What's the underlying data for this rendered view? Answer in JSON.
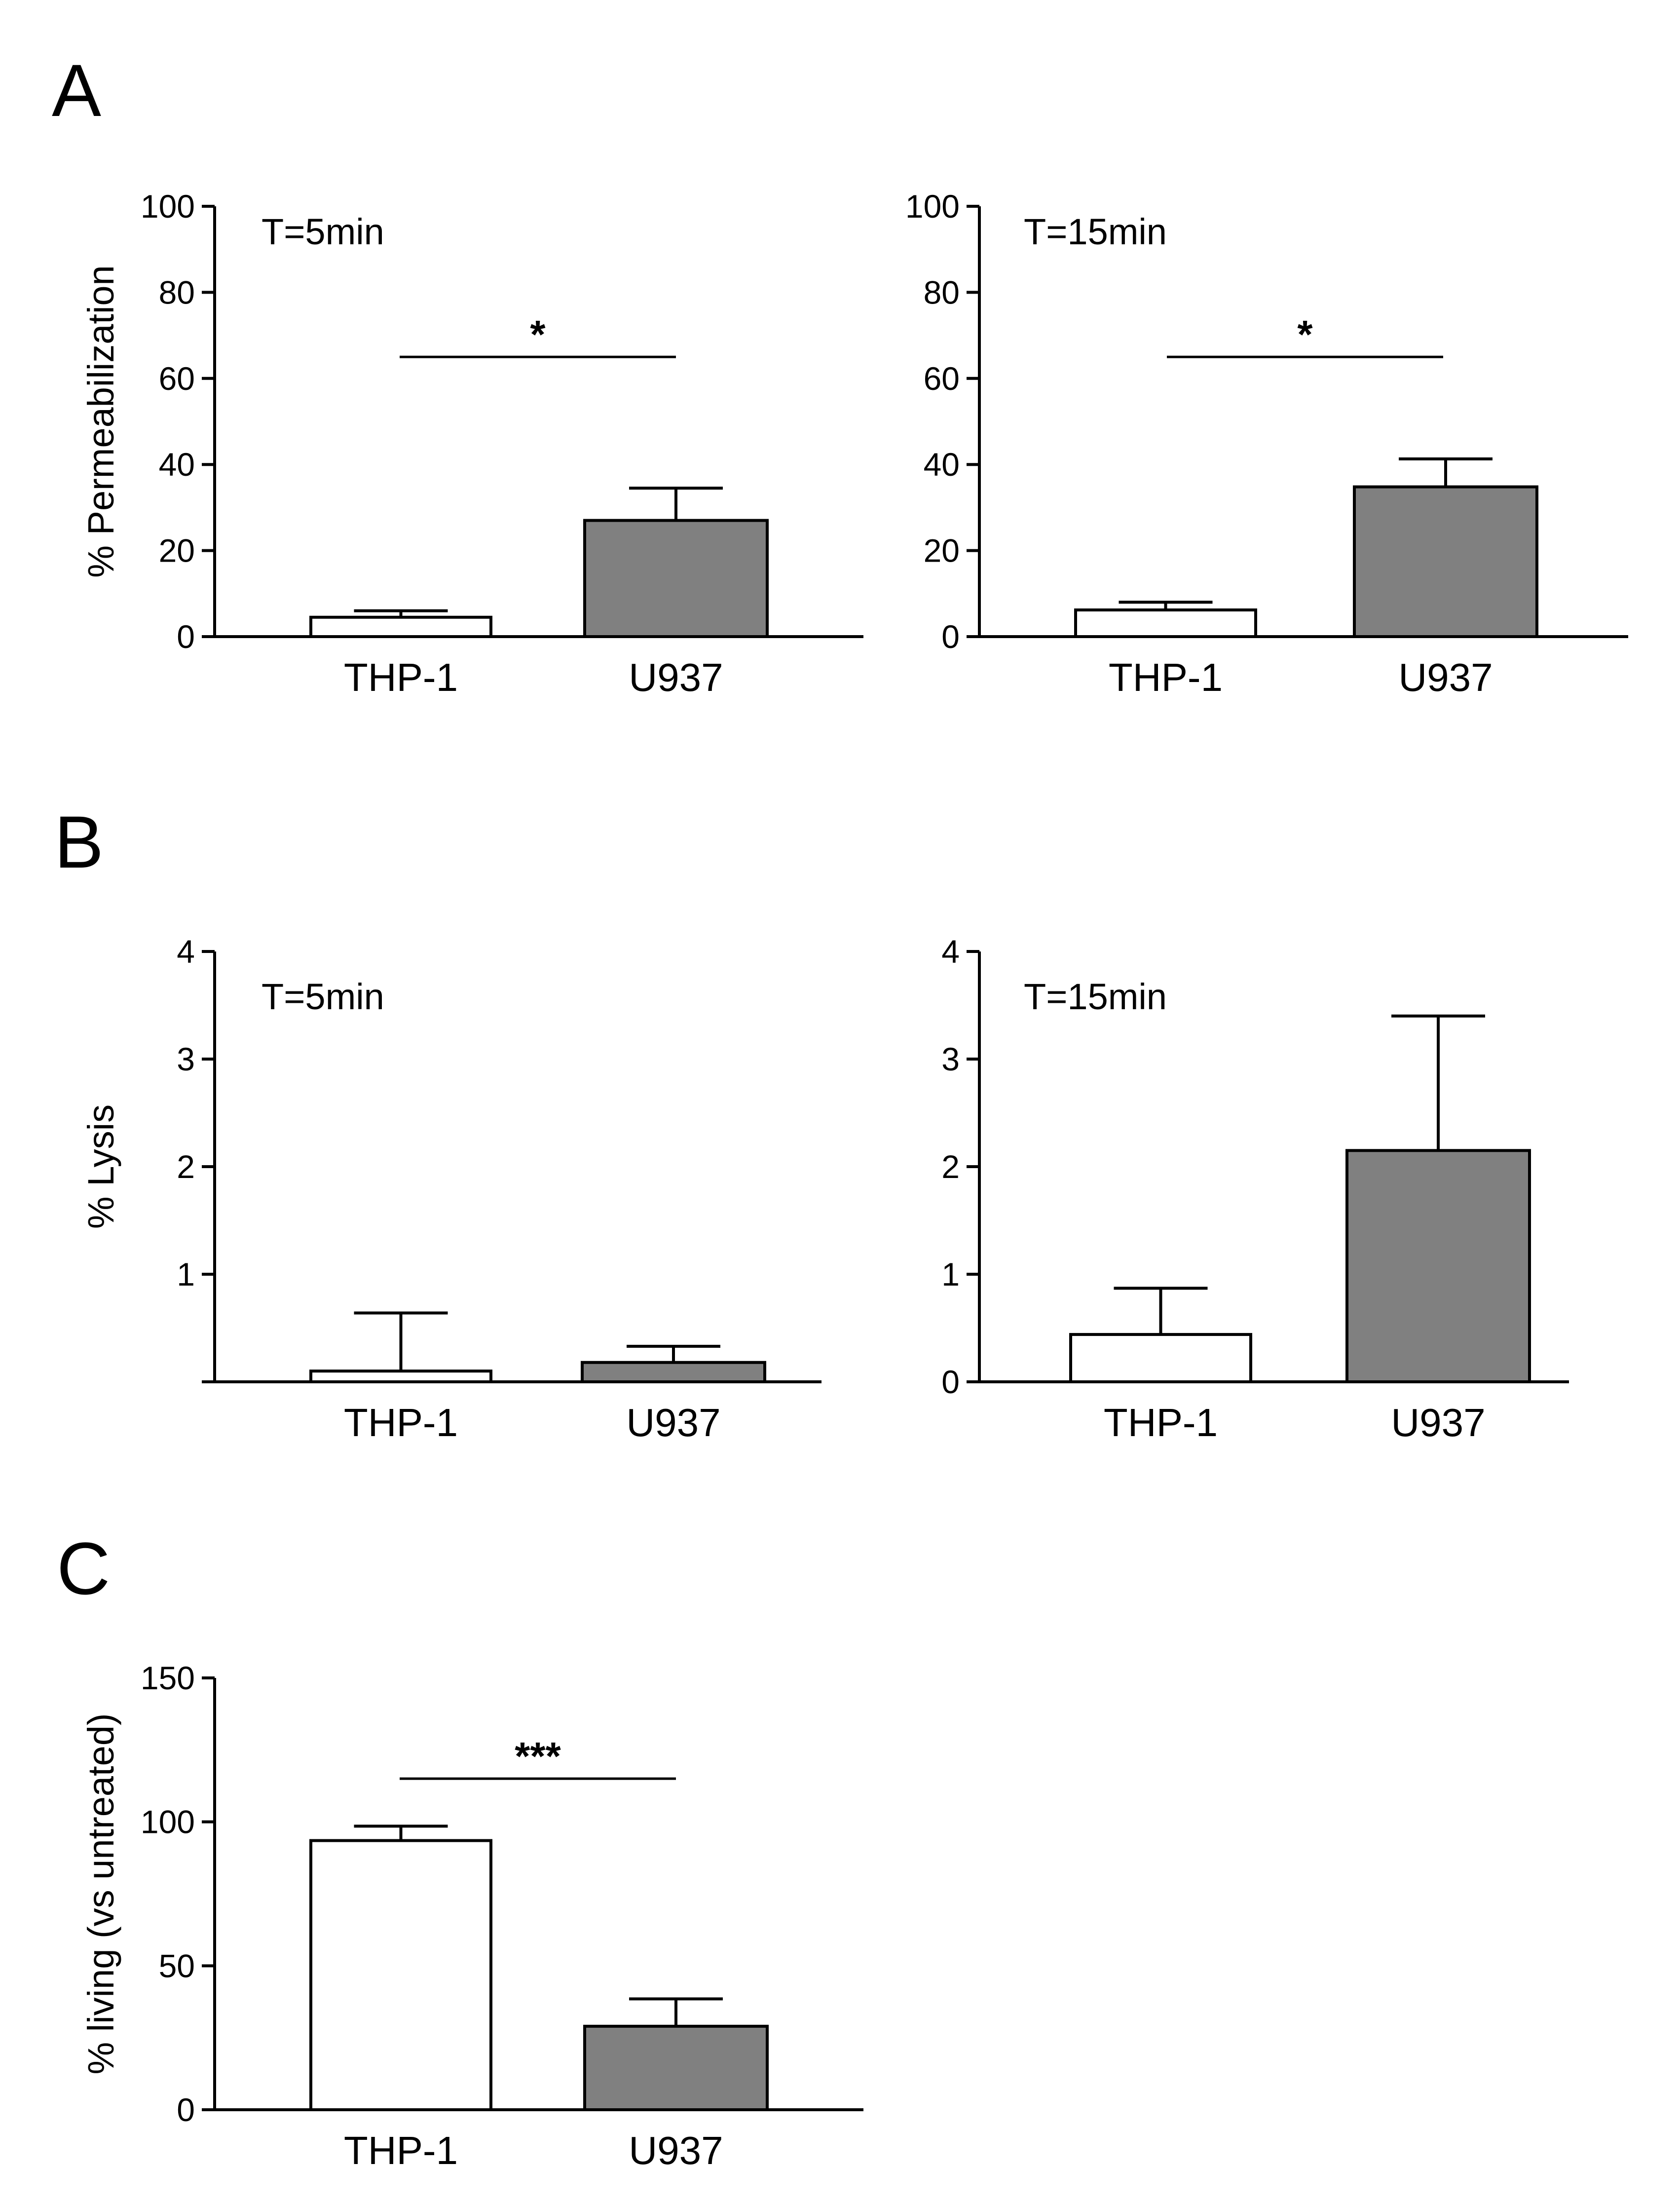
{
  "panel_letters": [
    "A",
    "B",
    "C"
  ],
  "colors": {
    "bar_thp1": "#ffffff",
    "bar_u937": "#808080",
    "stroke": "#000000"
  },
  "chart_data": [
    {
      "id": "A-5min",
      "panel": "A",
      "type": "bar",
      "annotation": "T=5min",
      "ylabel": "% Permeabilization",
      "ylim": [
        0,
        100
      ],
      "yticks": [
        0,
        20,
        40,
        60,
        80,
        100
      ],
      "categories": [
        "THP-1",
        "U937"
      ],
      "values": [
        4.5,
        27
      ],
      "errors": [
        1.5,
        7.5
      ],
      "significance": {
        "label": "*",
        "y": 65
      }
    },
    {
      "id": "A-15min",
      "panel": "A",
      "type": "bar",
      "annotation": "T=15min",
      "ylabel": "",
      "ylim": [
        0,
        100
      ],
      "yticks": [
        0,
        20,
        40,
        60,
        80,
        100
      ],
      "categories": [
        "THP-1",
        "U937"
      ],
      "values": [
        6.2,
        34.8
      ],
      "errors": [
        1.8,
        6.5
      ],
      "significance": {
        "label": "*",
        "y": 65
      }
    },
    {
      "id": "B-5min",
      "panel": "B",
      "type": "bar",
      "annotation": "T=5min",
      "ylabel": "% Lysis",
      "ylim": [
        0,
        4
      ],
      "yticks": [
        1,
        2,
        3,
        4
      ],
      "categories": [
        "THP-1",
        "U937"
      ],
      "values": [
        0.1,
        0.18
      ],
      "errors": [
        0.54,
        0.15
      ],
      "significance": null
    },
    {
      "id": "B-15min",
      "panel": "B",
      "type": "bar",
      "annotation": "T=15min",
      "ylabel": "",
      "ylim": [
        0,
        4
      ],
      "yticks": [
        0,
        1,
        2,
        3,
        4
      ],
      "categories": [
        "THP-1",
        "U937"
      ],
      "values": [
        0.44,
        2.15
      ],
      "errors": [
        0.43,
        1.25
      ],
      "significance": null
    },
    {
      "id": "C",
      "panel": "C",
      "type": "bar",
      "annotation": "",
      "ylabel": "% living (vs untreated)",
      "ylim": [
        0,
        150
      ],
      "yticks": [
        0,
        50,
        100,
        150
      ],
      "categories": [
        "THP-1",
        "U937"
      ],
      "values": [
        93.5,
        29
      ],
      "errors": [
        5,
        9.5
      ],
      "significance": {
        "label": "***",
        "y": 115
      }
    }
  ]
}
